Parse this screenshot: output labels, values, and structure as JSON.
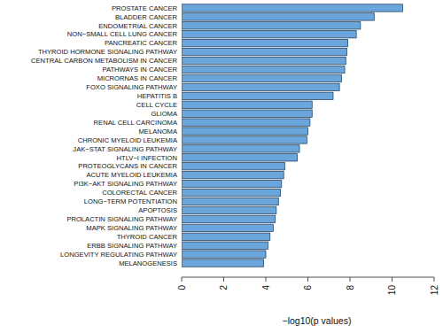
{
  "chart_data": {
    "type": "bar",
    "orientation": "horizontal",
    "x_label": "−log10(p values)",
    "categories": [
      "PROSTATE CANCER",
      "BLADDER CANCER",
      "ENDOMETRIAL CANCER",
      "NON−SMALL CELL LUNG CANCER",
      "PANCREATIC CANCER",
      "THYROID HORMONE SIGNALING PATHWAY",
      "CENTRAL CARBON METABOLISM IN CANCER",
      "PATHWAYS IN CANCER",
      "MICRORNAS IN CANCER",
      "FOXO SIGNALING PATHWAY",
      "HEPATITIS B",
      "CELL CYCLE",
      "GLIOMA",
      "RENAL CELL CARCINOMA",
      "MELANOMA",
      "CHRONIC MYELOID LEUKEMIA",
      "JAK−STAT SIGNALING PATHWAY",
      "HTLV−I INFECTION",
      "PROTEOGLYCANS IN CANCER",
      "ACUTE MYELOID LEUKEMIA",
      "PI3K−AKT SIGNALING PATHWAY",
      "COLORECTAL CANCER",
      "LONG−TERM POTENTIATION",
      "APOPTOSIS",
      "PROLACTIN SIGNALING PATHWAY",
      "MAPK SIGNALING PATHWAY",
      "THYROID CANCER",
      "ERBB SIGNALING PATHWAY",
      "LONGEVITY REGULATING PATHWAY",
      "MELANOGENESIS"
    ],
    "values": [
      10.5,
      9.15,
      8.5,
      8.3,
      7.9,
      7.85,
      7.8,
      7.75,
      7.6,
      7.5,
      7.2,
      6.2,
      6.2,
      6.1,
      6.0,
      5.95,
      5.6,
      5.5,
      4.9,
      4.85,
      4.75,
      4.7,
      4.6,
      4.5,
      4.45,
      4.35,
      4.2,
      4.1,
      4.0,
      3.9
    ],
    "color": "#6aa6db",
    "xlim": [
      0,
      12
    ],
    "xticks": [
      0,
      2,
      4,
      6,
      8,
      10,
      12
    ]
  }
}
